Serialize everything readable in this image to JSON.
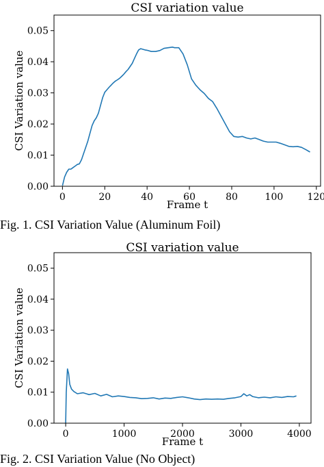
{
  "captions": {
    "fig1": "Fig. 1. CSI Variation Value (Aluminum Foil)",
    "fig2": "Fig. 2. CSI Variation Value (No Object)"
  },
  "colors": {
    "line": "#1f77b4",
    "axes": "#000000",
    "background": "#ffffff"
  },
  "chart_data": [
    {
      "type": "line",
      "title": "CSI variation value",
      "xlabel": "Frame t",
      "ylabel": "CSI Variation value",
      "xlim": [
        -4,
        122
      ],
      "ylim": [
        0,
        0.055
      ],
      "xticks": [
        0,
        20,
        40,
        60,
        80,
        100,
        120
      ],
      "xtick_labels": [
        "0",
        "20",
        "40",
        "60",
        "80",
        "100",
        "120"
      ],
      "yticks": [
        0,
        0.01,
        0.02,
        0.03,
        0.04,
        0.05
      ],
      "ytick_labels": [
        "0.00",
        "0.01",
        "0.02",
        "0.03",
        "0.04",
        "0.05"
      ],
      "grid": false,
      "series": [
        {
          "x": [
            0,
            1,
            2,
            3,
            4,
            5,
            6,
            7,
            8,
            9,
            10,
            11,
            12,
            13,
            14,
            15,
            16,
            17,
            18,
            19,
            20,
            21,
            22,
            23,
            24,
            25,
            26,
            27,
            28,
            29,
            30,
            31,
            32,
            33,
            34,
            35,
            36,
            37,
            38,
            39,
            40,
            42,
            44,
            46,
            48,
            50,
            52,
            53,
            55,
            57,
            59,
            61,
            63,
            65,
            67,
            69,
            71,
            73,
            75,
            77,
            79,
            81,
            83,
            85,
            87,
            89,
            91,
            93,
            95,
            97,
            99,
            101,
            103,
            105,
            107,
            109,
            111,
            113,
            115,
            117
          ],
          "values": [
            0.0002,
            0.003,
            0.0045,
            0.0055,
            0.0055,
            0.006,
            0.0065,
            0.007,
            0.0072,
            0.0085,
            0.0105,
            0.0125,
            0.0145,
            0.017,
            0.0195,
            0.021,
            0.022,
            0.0235,
            0.026,
            0.0285,
            0.0302,
            0.031,
            0.0318,
            0.0325,
            0.0332,
            0.0338,
            0.0342,
            0.0347,
            0.0353,
            0.036,
            0.0368,
            0.0375,
            0.0385,
            0.0395,
            0.041,
            0.0425,
            0.0438,
            0.0442,
            0.044,
            0.0438,
            0.0437,
            0.0433,
            0.0433,
            0.0436,
            0.0443,
            0.0445,
            0.0447,
            0.0445,
            0.0445,
            0.0425,
            0.039,
            0.0345,
            0.0325,
            0.031,
            0.0298,
            0.0282,
            0.0272,
            0.025,
            0.0225,
            0.02,
            0.0175,
            0.016,
            0.0158,
            0.016,
            0.0155,
            0.0152,
            0.0155,
            0.015,
            0.0145,
            0.0142,
            0.0142,
            0.0142,
            0.0138,
            0.0133,
            0.0128,
            0.0127,
            0.0128,
            0.0125,
            0.0118,
            0.011
          ]
        }
      ]
    },
    {
      "type": "line",
      "title": "CSI variation value",
      "xlabel": "Frame t",
      "ylabel": "CSI Variation value",
      "xlim": [
        -200,
        4200
      ],
      "ylim": [
        0,
        0.055
      ],
      "xticks": [
        0,
        1000,
        2000,
        3000,
        4000
      ],
      "xtick_labels": [
        "0",
        "1000",
        "2000",
        "3000",
        "4000"
      ],
      "yticks": [
        0,
        0.01,
        0.02,
        0.03,
        0.04,
        0.05
      ],
      "ytick_labels": [
        "0.00",
        "0.01",
        "0.02",
        "0.03",
        "0.04",
        "0.05"
      ],
      "grid": false,
      "series": [
        {
          "x": [
            0,
            10,
            30,
            50,
            70,
            100,
            140,
            200,
            300,
            400,
            500,
            600,
            700,
            800,
            900,
            1000,
            1100,
            1200,
            1300,
            1400,
            1500,
            1600,
            1700,
            1800,
            1900,
            2000,
            2100,
            2200,
            2300,
            2400,
            2500,
            2600,
            2700,
            2800,
            2900,
            3000,
            3050,
            3100,
            3150,
            3200,
            3300,
            3400,
            3500,
            3600,
            3700,
            3800,
            3900,
            3950
          ],
          "values": [
            0.0,
            0.0098,
            0.0175,
            0.016,
            0.0125,
            0.011,
            0.0102,
            0.0095,
            0.0098,
            0.0092,
            0.0096,
            0.0088,
            0.0093,
            0.0085,
            0.0088,
            0.0086,
            0.0083,
            0.0082,
            0.0079,
            0.008,
            0.0082,
            0.0078,
            0.0081,
            0.008,
            0.0083,
            0.0085,
            0.0082,
            0.0078,
            0.0076,
            0.0078,
            0.0077,
            0.0078,
            0.0077,
            0.008,
            0.0082,
            0.0086,
            0.0095,
            0.0088,
            0.0092,
            0.0086,
            0.0082,
            0.0084,
            0.0082,
            0.0085,
            0.0083,
            0.0086,
            0.0085,
            0.0088
          ]
        }
      ]
    }
  ]
}
